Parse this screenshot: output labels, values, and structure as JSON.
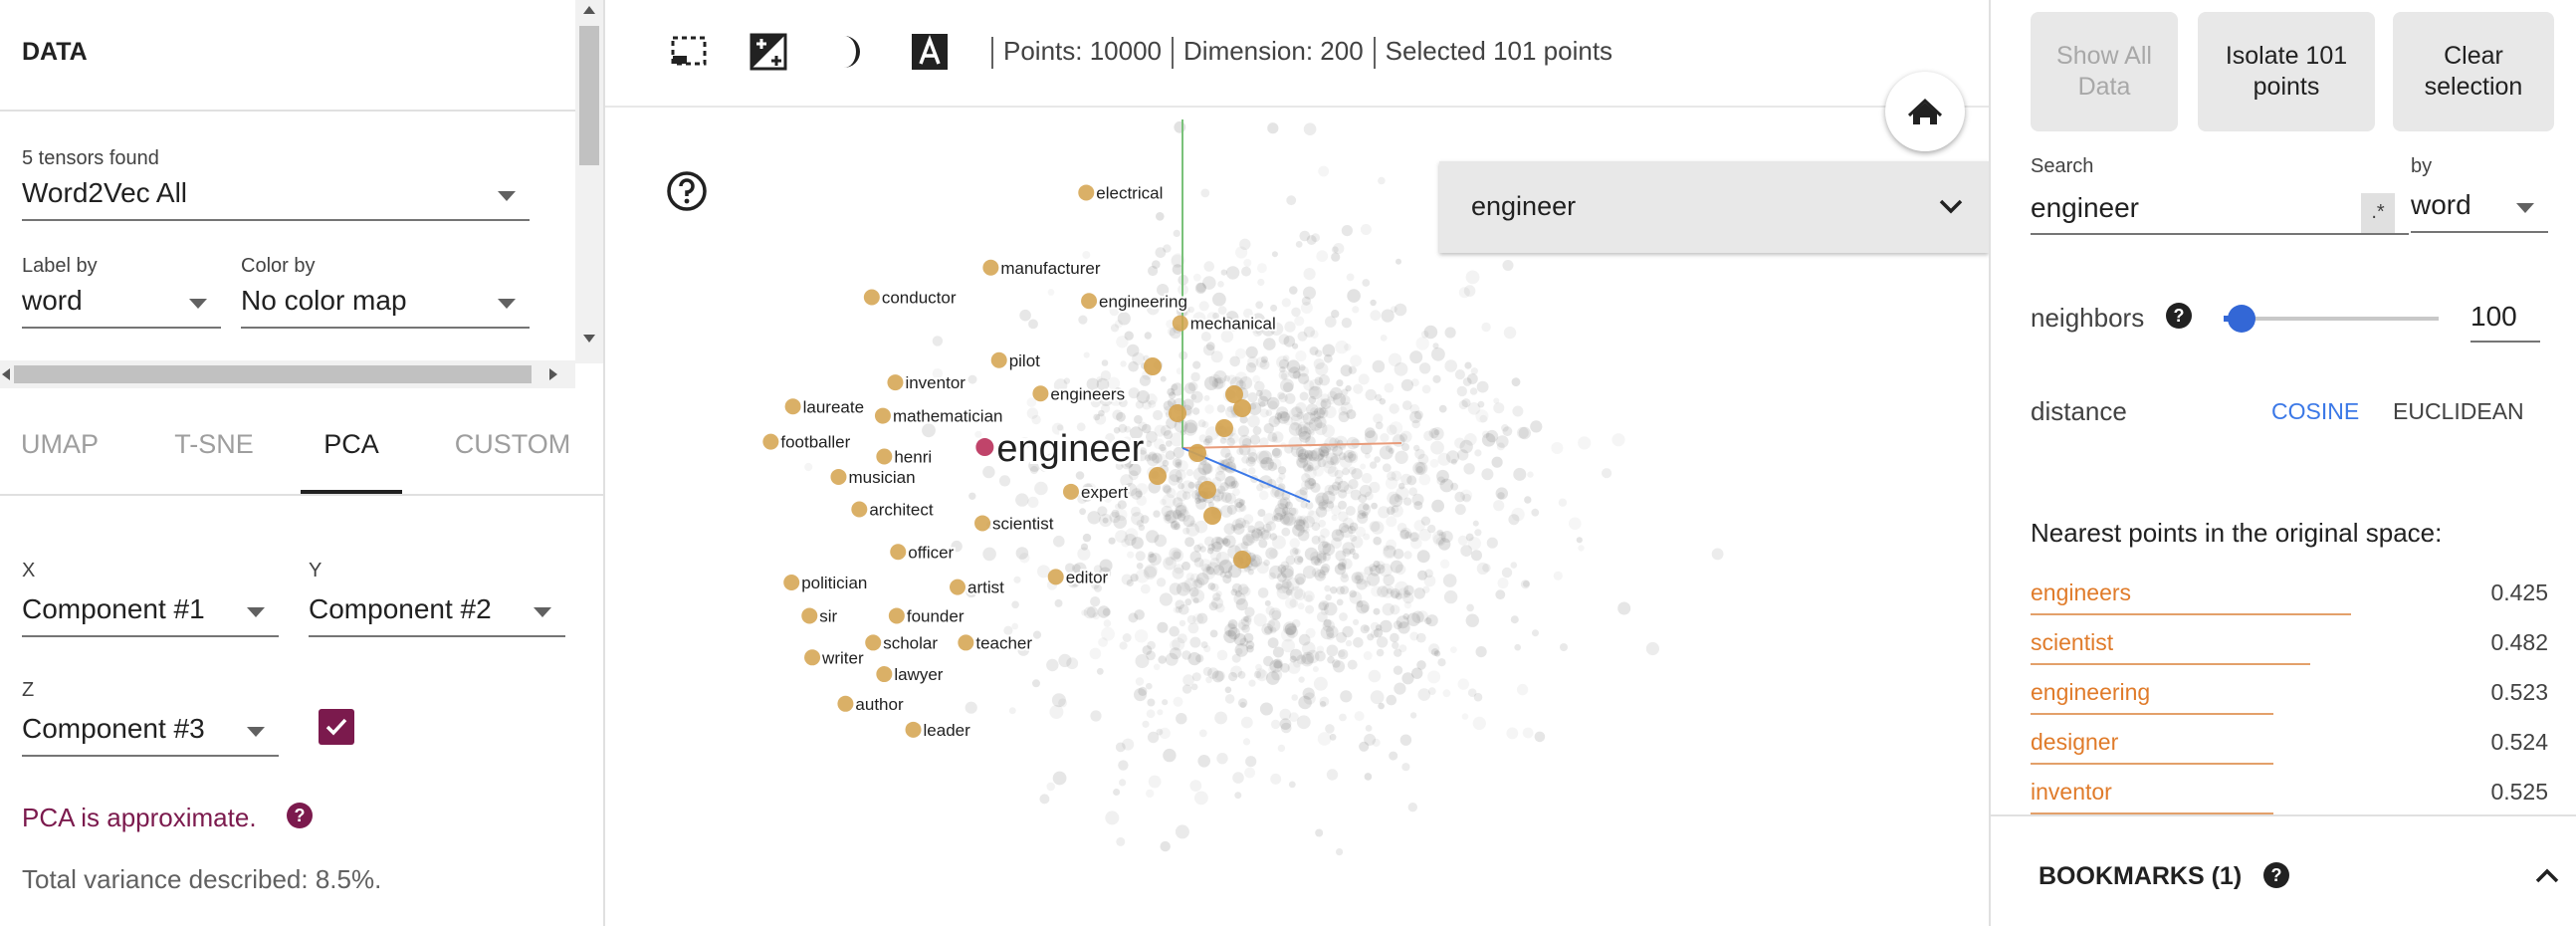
{
  "left": {
    "data_title": "DATA",
    "tensors_found": "5 tensors found",
    "tensor_select": "Word2Vec All",
    "label_by_label": "Label by",
    "label_by_value": "word",
    "color_by_label": "Color by",
    "color_by_value": "No color map",
    "tabs": [
      "UMAP",
      "T-SNE",
      "PCA",
      "CUSTOM"
    ],
    "active_tab": "PCA",
    "x_label": "X",
    "x_value": "Component #1",
    "y_label": "Y",
    "y_value": "Component #2",
    "z_label": "Z",
    "z_value": "Component #3",
    "z_checked": true,
    "pca_note": "PCA is approximate.",
    "variance": "Total variance described: 8.5%."
  },
  "toolbar": {
    "points": "Points: 10000",
    "dimension": "Dimension: 200",
    "selected": "Selected 101 points",
    "icons": [
      "select-rectangle-icon",
      "night-mode-icon",
      "moon-icon",
      "label-toggle-icon"
    ]
  },
  "center": {
    "search_dropdown_value": "engineer",
    "highlight_color": "#d4a24c",
    "focus_color": "#c0446a",
    "labels": [
      {
        "text": "electrical",
        "nx": 0.352,
        "ny": 0.208
      },
      {
        "text": "manufacturer",
        "nx": 0.283,
        "ny": 0.289
      },
      {
        "text": "engineering",
        "nx": 0.354,
        "ny": 0.325
      },
      {
        "text": "mechanical",
        "nx": 0.42,
        "ny": 0.349
      },
      {
        "text": "conductor",
        "nx": 0.197,
        "ny": 0.321
      },
      {
        "text": "pilot",
        "nx": 0.289,
        "ny": 0.389
      },
      {
        "text": "inventor",
        "nx": 0.214,
        "ny": 0.413
      },
      {
        "text": "engineers",
        "nx": 0.319,
        "ny": 0.425
      },
      {
        "text": "laureate",
        "nx": 0.14,
        "ny": 0.439
      },
      {
        "text": "mathematician",
        "nx": 0.205,
        "ny": 0.449
      },
      {
        "text": "footballer",
        "nx": 0.124,
        "ny": 0.477
      },
      {
        "text": "henri",
        "nx": 0.206,
        "ny": 0.493
      },
      {
        "text": "musician",
        "nx": 0.173,
        "ny": 0.515
      },
      {
        "text": "expert",
        "nx": 0.341,
        "ny": 0.531
      },
      {
        "text": "architect",
        "nx": 0.188,
        "ny": 0.55
      },
      {
        "text": "scientist",
        "nx": 0.277,
        "ny": 0.565
      },
      {
        "text": "officer",
        "nx": 0.216,
        "ny": 0.596
      },
      {
        "text": "editor",
        "nx": 0.33,
        "ny": 0.623
      },
      {
        "text": "politician",
        "nx": 0.139,
        "ny": 0.629
      },
      {
        "text": "artist",
        "nx": 0.259,
        "ny": 0.634
      },
      {
        "text": "founder",
        "nx": 0.215,
        "ny": 0.665
      },
      {
        "text": "sir",
        "nx": 0.152,
        "ny": 0.665
      },
      {
        "text": "scholar",
        "nx": 0.198,
        "ny": 0.694
      },
      {
        "text": "teacher",
        "nx": 0.265,
        "ny": 0.694
      },
      {
        "text": "writer",
        "nx": 0.154,
        "ny": 0.71
      },
      {
        "text": "lawyer",
        "nx": 0.206,
        "ny": 0.728
      },
      {
        "text": "author",
        "nx": 0.178,
        "ny": 0.76
      },
      {
        "text": "leader",
        "nx": 0.227,
        "ny": 0.788
      }
    ],
    "focus_label": "engineer"
  },
  "right": {
    "show_all": "Show All Data",
    "isolate": "Isolate 101 points",
    "clear": "Clear selection",
    "search_label": "Search",
    "search_value": "engineer",
    "regex": ".*",
    "by_label": "by",
    "by_value": "word",
    "neighbors_label": "neighbors",
    "neighbors_value": "100",
    "neighbors_fraction": 0.02,
    "distance_label": "distance",
    "cosine": "COSINE",
    "euclidean": "EUCLIDEAN",
    "nearest_title": "Nearest points in the original space:",
    "nearest": [
      {
        "word": "engineers",
        "value": "0.425",
        "bar": 0.62
      },
      {
        "word": "scientist",
        "value": "0.482",
        "bar": 0.54
      },
      {
        "word": "engineering",
        "value": "0.523",
        "bar": 0.47
      },
      {
        "word": "designer",
        "value": "0.524",
        "bar": 0.47
      },
      {
        "word": "inventor",
        "value": "0.525",
        "bar": 0.47
      }
    ],
    "bookmarks": "BOOKMARKS (1)"
  }
}
